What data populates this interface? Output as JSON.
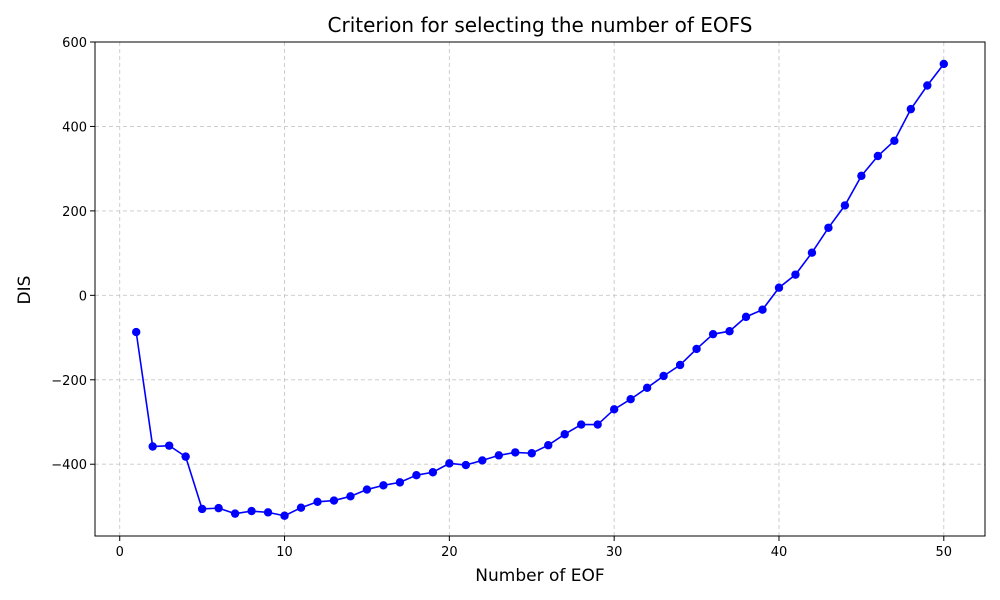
{
  "chart_data": {
    "type": "line",
    "title": "Criterion for selecting the number of EOFS",
    "xlabel": "Number of EOF",
    "ylabel": "DIS",
    "xlim": [
      -1.5,
      52.5
    ],
    "ylim": [
      -570,
      600
    ],
    "xticks": [
      0,
      10,
      20,
      30,
      40,
      50
    ],
    "yticks": [
      -400,
      -200,
      0,
      200,
      400,
      600
    ],
    "ytick_labels": [
      "−400",
      "−200",
      "0",
      "200",
      "400",
      "600"
    ],
    "grid": true,
    "color": "#0000ff",
    "x": [
      1,
      2,
      3,
      4,
      5,
      6,
      7,
      8,
      9,
      10,
      11,
      12,
      13,
      14,
      15,
      16,
      17,
      18,
      19,
      20,
      21,
      22,
      23,
      24,
      25,
      26,
      27,
      28,
      29,
      30,
      31,
      32,
      33,
      34,
      35,
      36,
      37,
      38,
      39,
      40,
      41,
      42,
      43,
      44,
      45,
      46,
      47,
      48,
      49,
      50
    ],
    "y": [
      -87,
      -358,
      -356,
      -382,
      -506,
      -504,
      -517,
      -511,
      -514,
      -522,
      -503,
      -489,
      -486,
      -476,
      -460,
      -450,
      -443,
      -426,
      -419,
      -398,
      -402,
      -391,
      -379,
      -372,
      -374,
      -355,
      -329,
      -306,
      -306,
      -270,
      -246,
      -219,
      -191,
      -165,
      -127,
      -92,
      -85,
      -51,
      -34,
      18,
      49,
      101,
      160,
      213,
      283,
      330,
      366,
      441,
      497,
      548
    ]
  }
}
